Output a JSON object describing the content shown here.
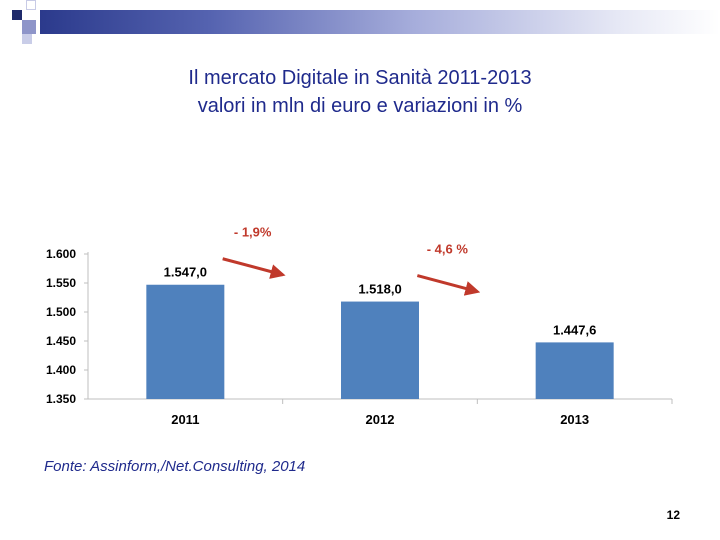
{
  "slide": {
    "title_line1": "Il mercato Digitale in Sanità 2011-2013",
    "title_line2": "valori in mln di euro e variazioni in %",
    "source": "Fonte: Assinform,/Net.Consulting, 2014",
    "page_number": "12"
  },
  "colors": {
    "bar": "#4f81bd",
    "title_text": "#1f2a8c",
    "annotation": "#c0392b",
    "axis_text": "#000000"
  },
  "chart_data": {
    "type": "bar",
    "categories": [
      "2011",
      "2012",
      "2013"
    ],
    "values": [
      1547.0,
      1518.0,
      1447.6
    ],
    "value_labels": [
      "1.547,0",
      "1.518,0",
      "1.447,6"
    ],
    "yticks": [
      1350,
      1400,
      1450,
      1500,
      1550,
      1600
    ],
    "ytick_labels": [
      "1.350",
      "1.400",
      "1.450",
      "1.500",
      "1.550",
      "1.600"
    ],
    "ylim": [
      1350,
      1600
    ],
    "grid": false,
    "annotations": [
      {
        "text": "- 1,9%",
        "between": [
          "2011",
          "2012"
        ]
      },
      {
        "text": "- 4,6 %",
        "between": [
          "2012",
          "2013"
        ]
      }
    ]
  }
}
